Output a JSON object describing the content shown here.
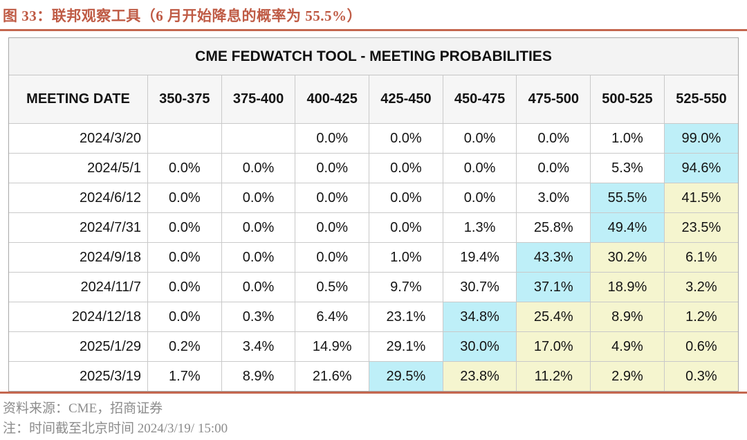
{
  "caption": {
    "text": "图 33：联邦观察工具（6 月开始降息的概率为 55.5%）"
  },
  "colors": {
    "accent": "#C4674F",
    "cyan": "#BEEFF8",
    "yellow": "#F5F5CF",
    "band_bg": "#F3F3F3",
    "footer_gray": "#8C8C8C"
  },
  "chart_data": {
    "type": "table",
    "title": "CME FEDWATCH TOOL - MEETING PROBABILITIES",
    "columns": [
      "MEETING DATE",
      "350-375",
      "375-400",
      "400-425",
      "425-450",
      "450-475",
      "475-500",
      "500-525",
      "525-550"
    ],
    "highlight_legend": {
      "cyan": "highest probability in row",
      "yellow": "probabilities above current rate path"
    },
    "rows": [
      {
        "date": "2024/3/20",
        "values": [
          "",
          "",
          "0.0%",
          "0.0%",
          "0.0%",
          "0.0%",
          "1.0%",
          "99.0%"
        ],
        "highlights": [
          "",
          "",
          "",
          "",
          "",
          "",
          "",
          "cyan"
        ]
      },
      {
        "date": "2024/5/1",
        "values": [
          "0.0%",
          "0.0%",
          "0.0%",
          "0.0%",
          "0.0%",
          "0.0%",
          "5.3%",
          "94.6%"
        ],
        "highlights": [
          "",
          "",
          "",
          "",
          "",
          "",
          "",
          "cyan"
        ]
      },
      {
        "date": "2024/6/12",
        "values": [
          "0.0%",
          "0.0%",
          "0.0%",
          "0.0%",
          "0.0%",
          "3.0%",
          "55.5%",
          "41.5%"
        ],
        "highlights": [
          "",
          "",
          "",
          "",
          "",
          "",
          "cyan",
          "yellow"
        ]
      },
      {
        "date": "2024/7/31",
        "values": [
          "0.0%",
          "0.0%",
          "0.0%",
          "0.0%",
          "1.3%",
          "25.8%",
          "49.4%",
          "23.5%"
        ],
        "highlights": [
          "",
          "",
          "",
          "",
          "",
          "",
          "cyan",
          "yellow"
        ]
      },
      {
        "date": "2024/9/18",
        "values": [
          "0.0%",
          "0.0%",
          "0.0%",
          "1.0%",
          "19.4%",
          "43.3%",
          "30.2%",
          "6.1%"
        ],
        "highlights": [
          "",
          "",
          "",
          "",
          "",
          "cyan",
          "yellow",
          "yellow"
        ]
      },
      {
        "date": "2024/11/7",
        "values": [
          "0.0%",
          "0.0%",
          "0.5%",
          "9.7%",
          "30.7%",
          "37.1%",
          "18.9%",
          "3.2%"
        ],
        "highlights": [
          "",
          "",
          "",
          "",
          "",
          "cyan",
          "yellow",
          "yellow"
        ]
      },
      {
        "date": "2024/12/18",
        "values": [
          "0.0%",
          "0.3%",
          "6.4%",
          "23.1%",
          "34.8%",
          "25.4%",
          "8.9%",
          "1.2%"
        ],
        "highlights": [
          "",
          "",
          "",
          "",
          "cyan",
          "yellow",
          "yellow",
          "yellow"
        ]
      },
      {
        "date": "2025/1/29",
        "values": [
          "0.2%",
          "3.4%",
          "14.9%",
          "29.1%",
          "30.0%",
          "17.0%",
          "4.9%",
          "0.6%"
        ],
        "highlights": [
          "",
          "",
          "",
          "",
          "cyan",
          "yellow",
          "yellow",
          "yellow"
        ]
      },
      {
        "date": "2025/3/19",
        "values": [
          "1.7%",
          "8.9%",
          "21.6%",
          "29.5%",
          "23.8%",
          "11.2%",
          "2.9%",
          "0.3%"
        ],
        "highlights": [
          "",
          "",
          "",
          "cyan",
          "yellow",
          "yellow",
          "yellow",
          "yellow"
        ]
      }
    ]
  },
  "footer": {
    "source": "资料来源：CME，招商证券",
    "note": "注：时间截至北京时间 2024/3/19/ 15:00"
  }
}
